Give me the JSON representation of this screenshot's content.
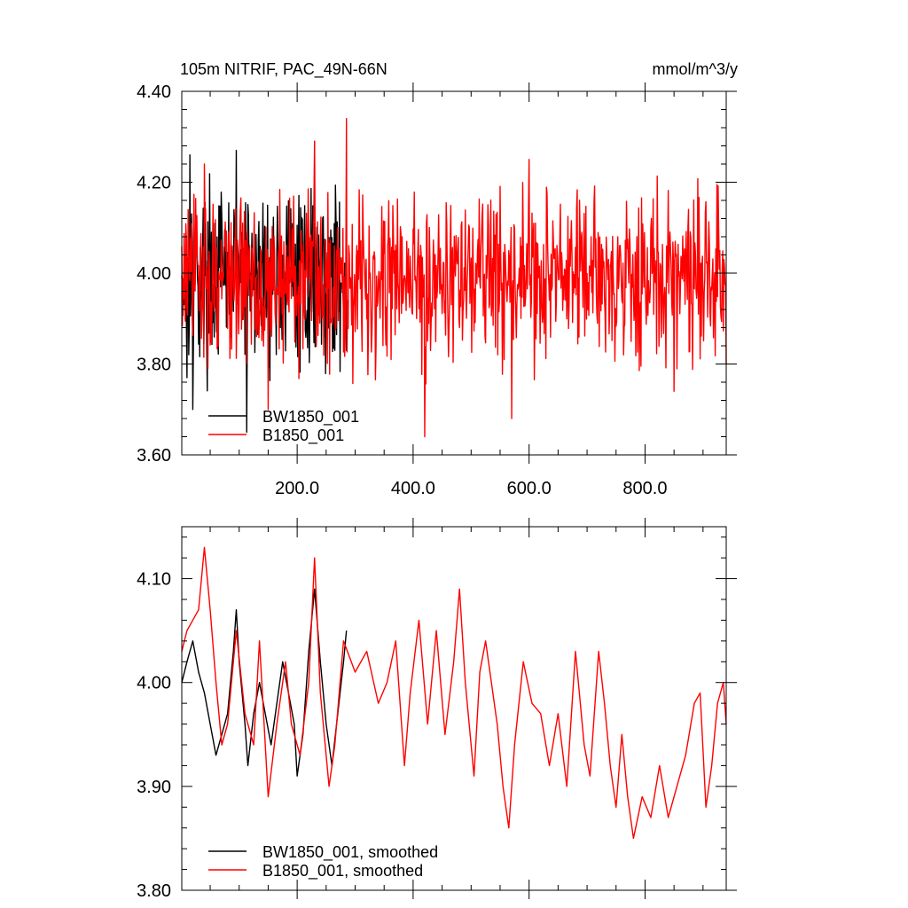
{
  "chart_data": [
    {
      "type": "line",
      "title": "105m NITRIF, PAC_49N-66N",
      "units": "mmol/m^3/y",
      "xlim": [
        1,
        940
      ],
      "ylim": [
        3.6,
        4.4
      ],
      "x_ticks": [
        200,
        400,
        600,
        800
      ],
      "x_tick_labels": [
        "200.0",
        "400.0",
        "600.0",
        "800.0"
      ],
      "y_ticks": [
        3.6,
        3.8,
        4.0,
        4.2,
        4.4
      ],
      "y_tick_labels": [
        "3.60",
        "3.80",
        "4.00",
        "4.20",
        "4.40"
      ],
      "legend_position": "bottom-left",
      "series": [
        {
          "name": "BW1850_001",
          "color": "#000000",
          "x_range": [
            1,
            285
          ],
          "mean": 3.99,
          "amplitude": 0.13,
          "extremes": [
            [
              10,
              3.77
            ],
            [
              15,
              4.26
            ],
            [
              20,
              3.7
            ],
            [
              95,
              4.27
            ],
            [
              113,
              3.65
            ],
            [
              230,
              4.29
            ],
            [
              265,
              3.83
            ]
          ]
        },
        {
          "name": "B1850_001",
          "color": "#ff0000",
          "x_range": [
            1,
            940
          ],
          "mean": 3.99,
          "amplitude": 0.13,
          "extremes": [
            [
              40,
              4.24
            ],
            [
              150,
              3.7
            ],
            [
              230,
              4.29
            ],
            [
              285,
              4.34
            ],
            [
              420,
              3.64
            ],
            [
              570,
              3.68
            ],
            [
              600,
              4.25
            ],
            [
              850,
              3.74
            ],
            [
              940,
              3.8
            ]
          ]
        }
      ]
    },
    {
      "type": "line",
      "xlim": [
        1,
        940
      ],
      "ylim": [
        3.8,
        4.15
      ],
      "y_ticks": [
        3.8,
        3.9,
        4.0,
        4.1
      ],
      "y_tick_labels": [
        "3.80",
        "3.90",
        "4.00",
        "4.10"
      ],
      "legend_position": "bottom-left",
      "series": [
        {
          "name": "BW1850_001, smoothed",
          "color": "#000000",
          "points": [
            [
              1,
              4.0
            ],
            [
              10,
              4.02
            ],
            [
              20,
              4.04
            ],
            [
              30,
              4.01
            ],
            [
              40,
              3.99
            ],
            [
              50,
              3.96
            ],
            [
              60,
              3.93
            ],
            [
              70,
              3.95
            ],
            [
              80,
              3.97
            ],
            [
              90,
              4.03
            ],
            [
              95,
              4.07
            ],
            [
              100,
              4.02
            ],
            [
              110,
              3.96
            ],
            [
              115,
              3.92
            ],
            [
              125,
              3.97
            ],
            [
              135,
              4.0
            ],
            [
              145,
              3.97
            ],
            [
              155,
              3.94
            ],
            [
              165,
              3.98
            ],
            [
              175,
              4.02
            ],
            [
              185,
              3.99
            ],
            [
              195,
              3.96
            ],
            [
              200,
              3.91
            ],
            [
              210,
              3.95
            ],
            [
              220,
              4.03
            ],
            [
              230,
              4.09
            ],
            [
              240,
              4.02
            ],
            [
              250,
              3.96
            ],
            [
              260,
              3.92
            ],
            [
              270,
              3.97
            ],
            [
              280,
              4.02
            ],
            [
              285,
              4.05
            ]
          ]
        },
        {
          "name": "B1850_001, smoothed",
          "color": "#ff0000",
          "points": [
            [
              1,
              4.03
            ],
            [
              10,
              4.05
            ],
            [
              20,
              4.06
            ],
            [
              30,
              4.07
            ],
            [
              40,
              4.13
            ],
            [
              50,
              4.07
            ],
            [
              60,
              4.0
            ],
            [
              70,
              3.94
            ],
            [
              80,
              3.96
            ],
            [
              95,
              4.05
            ],
            [
              110,
              3.97
            ],
            [
              125,
              3.94
            ],
            [
              135,
              4.04
            ],
            [
              150,
              3.89
            ],
            [
              165,
              3.96
            ],
            [
              180,
              4.02
            ],
            [
              190,
              3.96
            ],
            [
              205,
              3.93
            ],
            [
              220,
              4.0
            ],
            [
              230,
              4.12
            ],
            [
              240,
              3.99
            ],
            [
              255,
              3.9
            ],
            [
              265,
              3.94
            ],
            [
              280,
              4.04
            ],
            [
              300,
              4.01
            ],
            [
              320,
              4.03
            ],
            [
              340,
              3.98
            ],
            [
              355,
              4.0
            ],
            [
              370,
              4.04
            ],
            [
              385,
              3.92
            ],
            [
              395,
              3.99
            ],
            [
              410,
              4.06
            ],
            [
              425,
              3.96
            ],
            [
              440,
              4.05
            ],
            [
              455,
              3.95
            ],
            [
              470,
              4.02
            ],
            [
              480,
              4.09
            ],
            [
              490,
              4.0
            ],
            [
              505,
              3.91
            ],
            [
              515,
              4.01
            ],
            [
              525,
              4.04
            ],
            [
              545,
              3.96
            ],
            [
              555,
              3.9
            ],
            [
              565,
              3.86
            ],
            [
              575,
              3.94
            ],
            [
              590,
              4.02
            ],
            [
              605,
              3.98
            ],
            [
              620,
              3.97
            ],
            [
              635,
              3.92
            ],
            [
              650,
              3.97
            ],
            [
              665,
              3.9
            ],
            [
              680,
              4.03
            ],
            [
              695,
              3.94
            ],
            [
              705,
              3.91
            ],
            [
              720,
              4.03
            ],
            [
              730,
              3.98
            ],
            [
              740,
              3.92
            ],
            [
              750,
              3.88
            ],
            [
              760,
              3.95
            ],
            [
              770,
              3.89
            ],
            [
              780,
              3.85
            ],
            [
              795,
              3.89
            ],
            [
              810,
              3.87
            ],
            [
              825,
              3.92
            ],
            [
              840,
              3.87
            ],
            [
              855,
              3.9
            ],
            [
              870,
              3.93
            ],
            [
              885,
              3.98
            ],
            [
              895,
              3.99
            ],
            [
              905,
              3.88
            ],
            [
              915,
              3.92
            ],
            [
              925,
              3.98
            ],
            [
              935,
              4.0
            ],
            [
              940,
              3.96
            ]
          ]
        }
      ]
    }
  ]
}
